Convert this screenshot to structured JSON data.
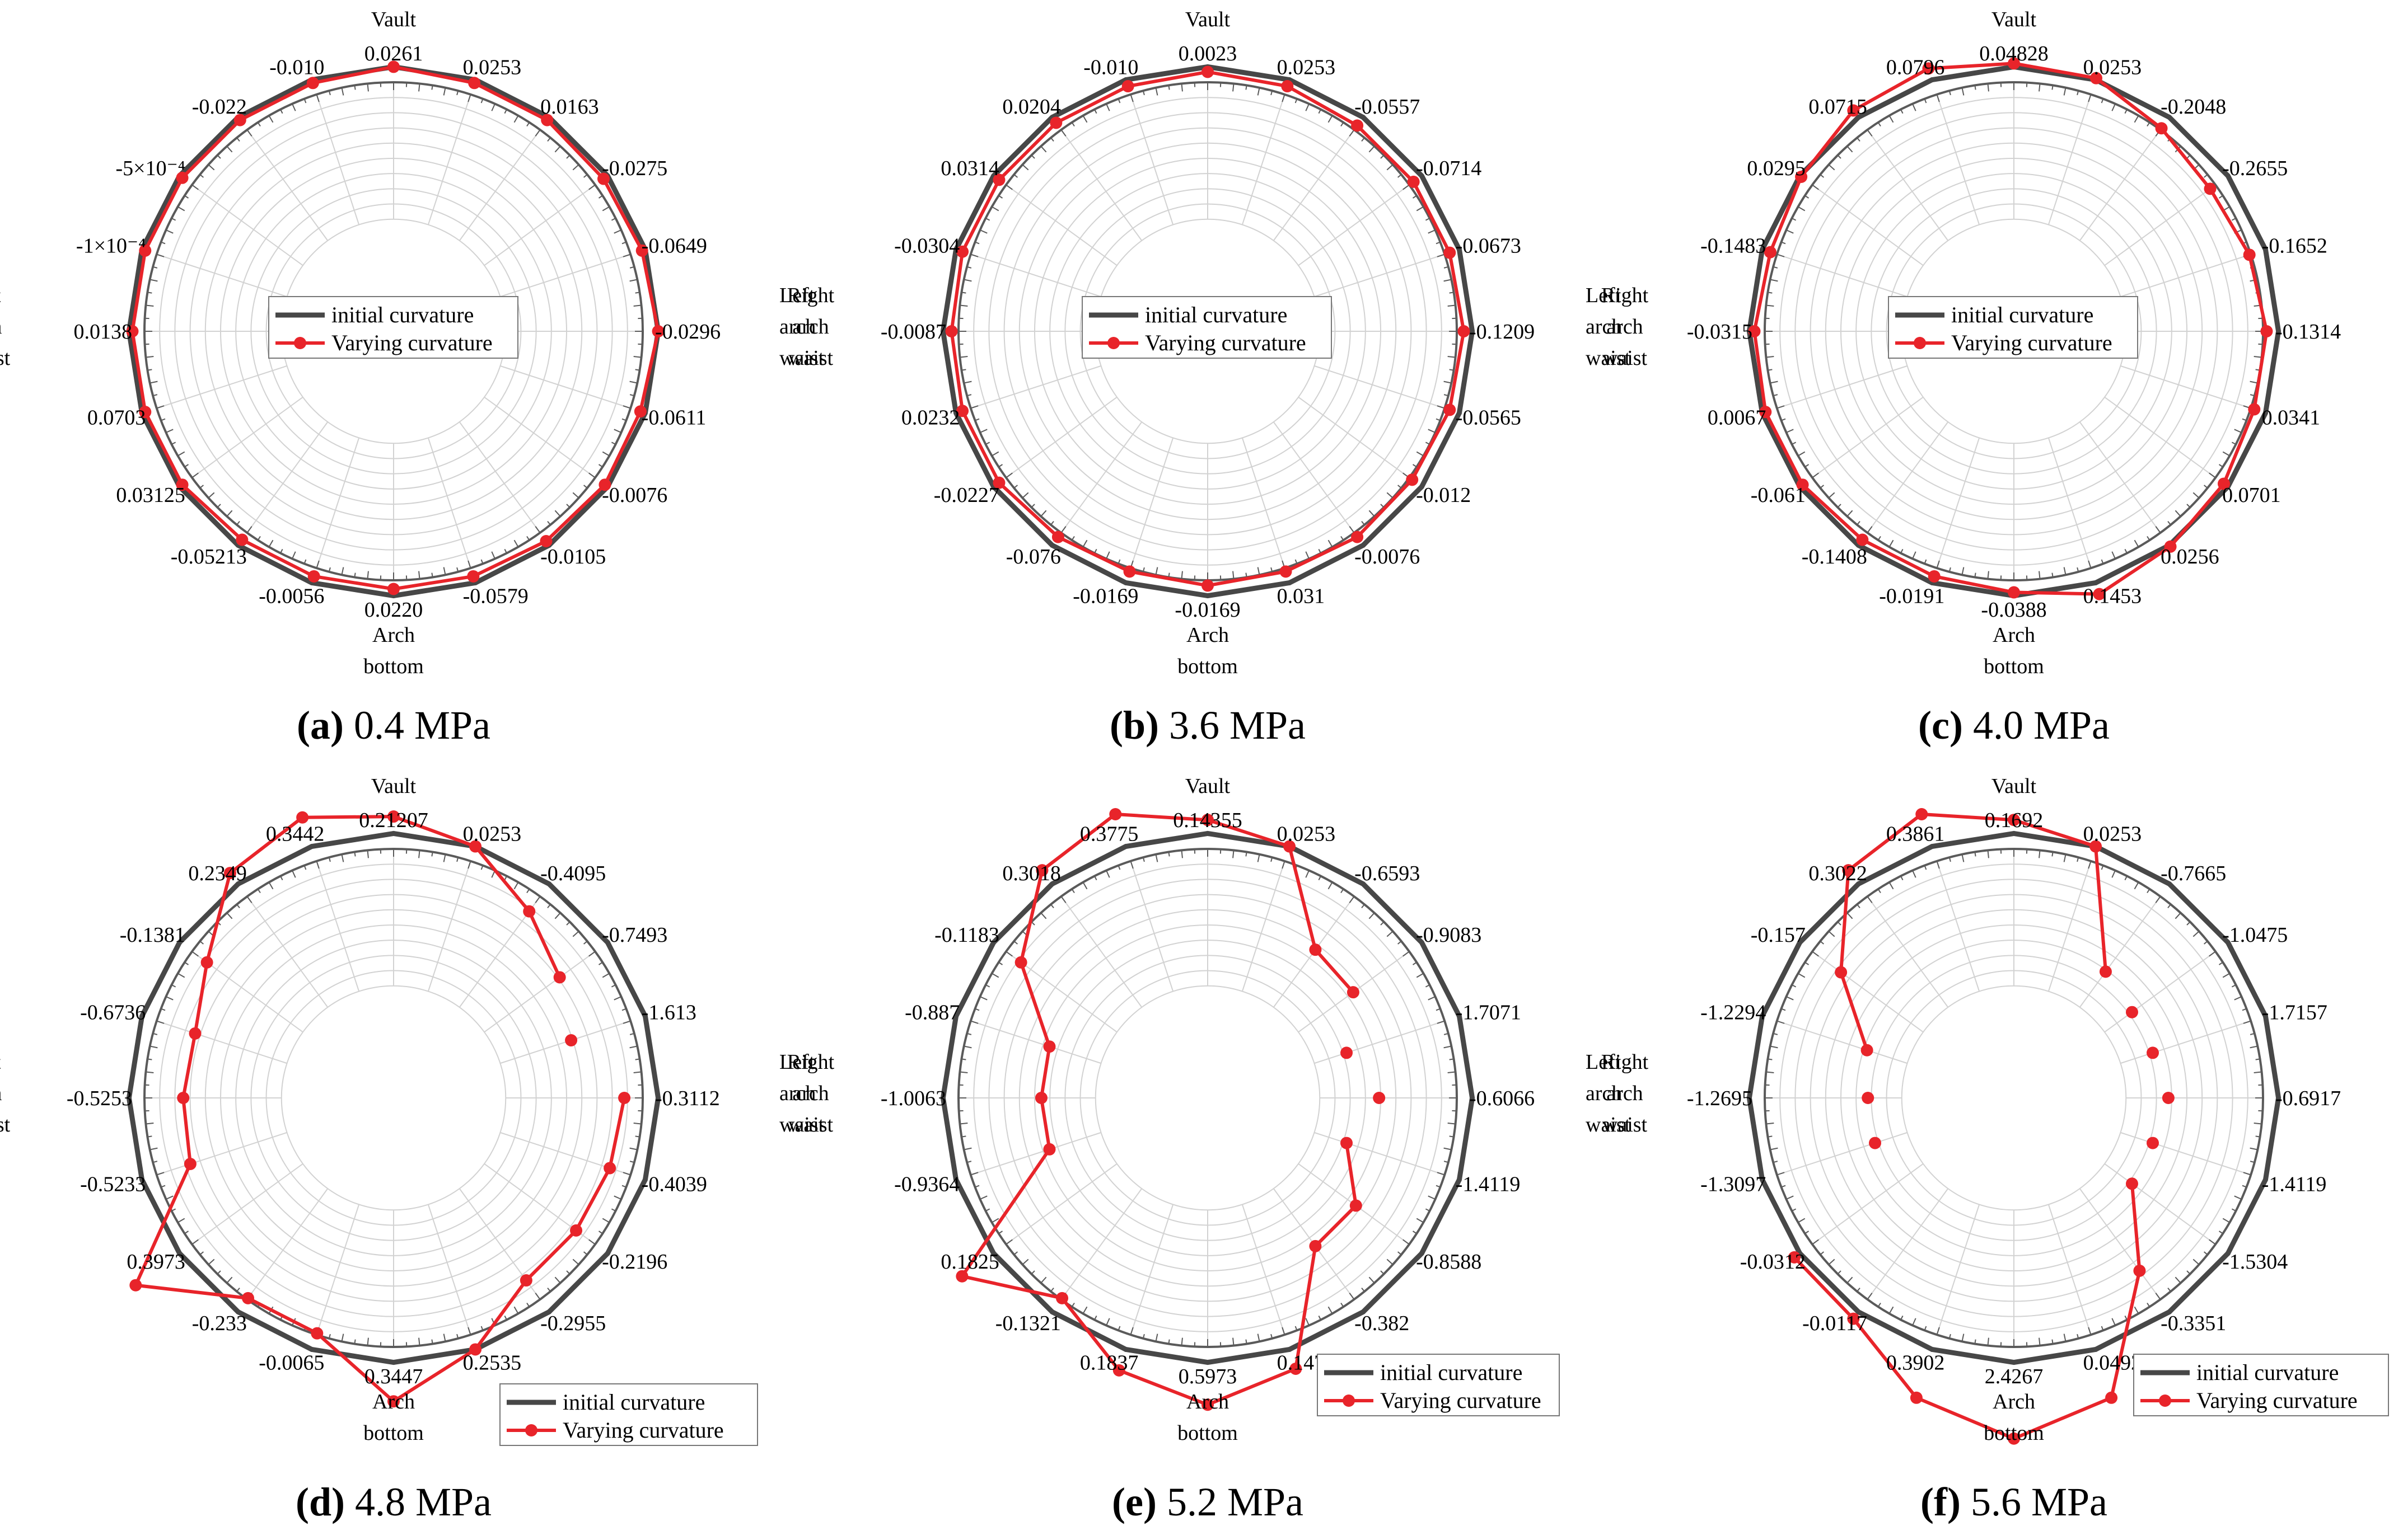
{
  "figure": {
    "legend_labels": {
      "initial": "initial curvature",
      "varying": "Varying curvature"
    },
    "colors": {
      "initial": "#474747",
      "varying": "#e8242a",
      "grid": "#d2d2d2",
      "axis": "#5a5a5a"
    },
    "directions": {
      "vault": [
        "Vault"
      ],
      "right": [
        "Right",
        "arch",
        "waist"
      ],
      "bottom": [
        "Arch",
        "bottom"
      ],
      "left": [
        "Left",
        "arch",
        "waist"
      ]
    }
  },
  "chart_data": [
    {
      "type": "polar-line",
      "panel": "a",
      "caption_letter": "(a)",
      "caption_text": " 0.4 MPa",
      "legend_position": "center",
      "angle_labels": [
        "0.0261",
        "0.0253",
        "0.0163",
        "-0.0275",
        "-0.0649",
        "-0.0296",
        "-0.0611",
        "-0.0076",
        "-0.0105",
        "-0.0579",
        "0.0220",
        "-0.0056",
        "-0.05213",
        "0.03125",
        "0.0703",
        "0.0138",
        "-1×10⁻⁴",
        "-5×10⁻⁴",
        "-0.022",
        "-0.010"
      ],
      "series": [
        {
          "name": "initial curvature",
          "values": [
            0.9,
            0.9,
            0.9,
            0.9,
            0.9,
            0.9,
            0.9,
            0.9,
            0.9,
            0.9,
            0.9,
            0.9,
            0.9,
            0.9,
            0.9,
            0.9,
            0.9,
            0.9,
            0.9,
            0.9
          ]
        },
        {
          "name": "Varying curvature",
          "values": [
            0.9,
            0.88,
            0.88,
            0.87,
            0.88,
            0.9,
            0.87,
            0.88,
            0.87,
            0.86,
            0.86,
            0.86,
            0.86,
            0.88,
            0.88,
            0.88,
            0.88,
            0.88,
            0.88,
            0.88
          ],
          "breaks": []
        }
      ]
    },
    {
      "type": "polar-line",
      "panel": "b",
      "caption_letter": "(b)",
      "caption_text": " 3.6 MPa",
      "legend_position": "center",
      "angle_labels": [
        "0.0023",
        "0.0253",
        "-0.0557",
        "-0.0714",
        "-0.0673",
        "-0.1209",
        "-0.0565",
        "-0.012",
        "-0.0076",
        "0.031",
        "-0.0169",
        "-0.0169",
        "-0.076",
        "-0.0227",
        "0.0232",
        "-0.0087",
        "-0.0304",
        "0.0314",
        "0.0204",
        "-0.010"
      ],
      "series": [
        {
          "name": "initial curvature",
          "values": [
            0.9,
            0.9,
            0.9,
            0.9,
            0.9,
            0.9,
            0.9,
            0.9,
            0.9,
            0.9,
            0.9,
            0.9,
            0.9,
            0.9,
            0.9,
            0.9,
            0.9,
            0.9,
            0.9,
            0.9
          ]
        },
        {
          "name": "Varying curvature",
          "values": [
            0.87,
            0.86,
            0.84,
            0.84,
            0.84,
            0.85,
            0.84,
            0.83,
            0.84,
            0.83,
            0.84,
            0.83,
            0.84,
            0.86,
            0.86,
            0.85,
            0.86,
            0.86,
            0.86,
            0.86
          ],
          "breaks": []
        }
      ]
    },
    {
      "type": "polar-line",
      "panel": "c",
      "caption_letter": "(c)",
      "caption_text": " 4.0 MPa",
      "legend_position": "center",
      "angle_labels": [
        "0.04828",
        "0.0253",
        "-0.2048",
        "-0.2655",
        "-0.1652",
        "-0.1314",
        "0.0341",
        "0.0701",
        "0.0256",
        "0.1453",
        "-0.0388",
        "-0.0191",
        "-0.1408",
        "-0.061",
        "0.0067",
        "-0.0315",
        "-0.1483",
        "0.0295",
        "0.0715",
        "0.0796"
      ],
      "series": [
        {
          "name": "initial curvature",
          "values": [
            0.9,
            0.9,
            0.9,
            0.9,
            0.9,
            0.9,
            0.9,
            0.9,
            0.9,
            0.9,
            0.9,
            0.9,
            0.9,
            0.9,
            0.9,
            0.9,
            0.9,
            0.9,
            0.9,
            0.9
          ]
        },
        {
          "name": "Varying curvature",
          "values": [
            0.92,
            0.91,
            0.82,
            0.77,
            0.8,
            0.83,
            0.83,
            0.87,
            0.91,
            0.97,
            0.88,
            0.86,
            0.86,
            0.88,
            0.88,
            0.87,
            0.85,
            0.89,
            0.95,
            0.97
          ],
          "breaks": []
        }
      ]
    },
    {
      "type": "polar-line",
      "panel": "d",
      "caption_letter": "(d)",
      "caption_text": " 4.8 MPa",
      "legend_position": "bottom-right",
      "angle_labels": [
        "0.21207",
        "0.0253",
        "-0.4095",
        "-0.7493",
        "-1.613",
        "-0.3112",
        "-0.4039",
        "-0.2196",
        "-0.2955",
        "0.2535",
        "0.3447",
        "-0.0065",
        "-0.233",
        "0.3973",
        "-0.5233",
        "-0.5253",
        "-0.6736",
        "-0.1381",
        "0.2349",
        "0.3442"
      ],
      "series": [
        {
          "name": "initial curvature",
          "values": [
            0.9,
            0.9,
            0.9,
            0.9,
            0.9,
            0.9,
            0.9,
            0.9,
            0.9,
            0.9,
            0.9,
            0.9,
            0.9,
            0.9,
            0.9,
            0.9,
            0.9,
            0.9,
            0.9,
            0.9
          ]
        },
        {
          "name": "Varying curvature",
          "values": [
            1.0,
            0.9,
            0.7,
            0.55,
            0.44,
            0.7,
            0.68,
            0.67,
            0.67,
            0.9,
            1.13,
            0.8,
            0.8,
            1.22,
            0.6,
            0.58,
            0.57,
            0.7,
            0.98,
            1.08
          ],
          "breaks": [
            [
              3,
              4
            ],
            [
              4,
              5
            ]
          ]
        }
      ]
    },
    {
      "type": "polar-line",
      "panel": "e",
      "caption_letter": "(e)",
      "caption_text": " 5.2 MPa",
      "legend_position": "bottom-right",
      "angle_labels": [
        "0.14355",
        "0.0253",
        "-0.6593",
        "-0.9083",
        "-1.7071",
        "-0.6066",
        "-1.4119",
        "-0.8588",
        "-0.382",
        "0.147",
        "0.5973",
        "0.1837",
        "-0.1321",
        "0.1825",
        "-0.9364",
        "-1.0063",
        "-0.887",
        "-0.1183",
        "0.3018",
        "0.3775"
      ],
      "series": [
        {
          "name": "initial curvature",
          "values": [
            0.9,
            0.9,
            0.9,
            0.9,
            0.9,
            0.9,
            0.9,
            0.9,
            0.9,
            0.9,
            0.9,
            0.9,
            0.9,
            0.9,
            0.9,
            0.9,
            0.9,
            0.9,
            0.9,
            0.9
          ]
        },
        {
          "name": "Varying curvature",
          "values": [
            0.98,
            0.9,
            0.42,
            0.4,
            0.2,
            0.35,
            0.2,
            0.42,
            0.42,
            1.02,
            1.15,
            1.03,
            0.8,
            1.13,
            0.32,
            0.32,
            0.32,
            0.7,
            1.0,
            1.1
          ],
          "breaks": [
            [
              3,
              4
            ],
            [
              4,
              5
            ],
            [
              5,
              6
            ]
          ]
        }
      ]
    },
    {
      "type": "polar-line",
      "panel": "f",
      "caption_letter": "(f)",
      "caption_text": " 5.6 MPa",
      "legend_position": "bottom-right",
      "angle_labels": [
        "0.1692",
        "0.0253",
        "-0.7665",
        "-1.0475",
        "-1.7157",
        "-0.6917",
        "-1.4119",
        "-1.5304",
        "-0.3351",
        "0.0492",
        "2.4267",
        "0.3902",
        "-0.0117",
        "-0.0312",
        "-1.3097",
        "-1.2695",
        "-1.2294",
        "-0.157",
        "0.3022",
        "0.3861"
      ],
      "series": [
        {
          "name": "initial curvature",
          "values": [
            0.9,
            0.9,
            0.9,
            0.9,
            0.9,
            0.9,
            0.9,
            0.9,
            0.9,
            0.9,
            0.9,
            0.9,
            0.9,
            0.9,
            0.9,
            0.9,
            0.9,
            0.9,
            0.9,
            0.9
          ]
        },
        {
          "name": "Varying curvature",
          "values": [
            0.98,
            0.9,
            0.26,
            0.2,
            0.2,
            0.25,
            0.2,
            0.2,
            0.6,
            1.2,
            1.35,
            1.2,
            0.95,
            0.94,
            0.2,
            0.2,
            0.25,
            0.6,
            1.0,
            1.1
          ],
          "breaks": [
            [
              2,
              3
            ],
            [
              3,
              4
            ],
            [
              4,
              5
            ],
            [
              5,
              6
            ],
            [
              6,
              7
            ],
            [
              13,
              14
            ],
            [
              14,
              15
            ],
            [
              15,
              16
            ]
          ]
        }
      ]
    }
  ]
}
